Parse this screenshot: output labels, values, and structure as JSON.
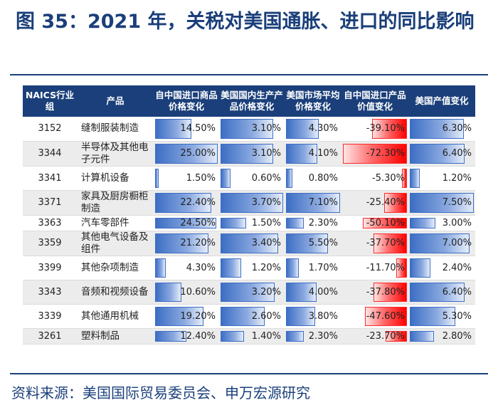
{
  "title": "图 35：2021 年，关税对美国通胀、进口的同比影响",
  "headers": [
    "NAICS行业组",
    "产品",
    "自中国进口商品价格变化",
    "美国国内生产产品价格变化",
    "美国市场平均价格变化",
    "自中国进口产品价值变化",
    "美国产值变化"
  ],
  "colors": {
    "header_bg": "#1a3f7a",
    "positive_bar": "#3d6ec4",
    "negative_bar": "#ff0000"
  },
  "rows": [
    {
      "code": "3152",
      "product": "缝制服装制造",
      "import_price": "14.50%",
      "domestic_price": "3.10%",
      "market_price": "4.30%",
      "import_value": "-39.10%",
      "output": "6.30%"
    },
    {
      "code": "3344",
      "product": "半导体及其他电子元件",
      "import_price": "25.00%",
      "domestic_price": "3.10%",
      "market_price": "4.10%",
      "import_value": "-72.30%",
      "output": "6.40%"
    },
    {
      "code": "3341",
      "product": "计算机设备",
      "import_price": "1.50%",
      "domestic_price": "0.60%",
      "market_price": "0.80%",
      "import_value": "-5.30%",
      "output": "1.20%"
    },
    {
      "code": "3371",
      "product": "家具及厨房橱柜制造",
      "import_price": "22.40%",
      "domestic_price": "3.70%",
      "market_price": "7.10%",
      "import_value": "-25.40%",
      "output": "7.50%"
    },
    {
      "code": "3363",
      "product": "汽车零部件",
      "import_price": "24.50%",
      "domestic_price": "1.50%",
      "market_price": "2.30%",
      "import_value": "-50.10%",
      "output": "3.00%"
    },
    {
      "code": "3359",
      "product": "其他电气设备及组件",
      "import_price": "21.20%",
      "domestic_price": "3.40%",
      "market_price": "5.50%",
      "import_value": "-37.70%",
      "output": "7.00%"
    },
    {
      "code": "3399",
      "product": "其他杂项制造",
      "import_price": "4.30%",
      "domestic_price": "1.20%",
      "market_price": "1.70%",
      "import_value": "-11.70%",
      "output": "2.40%"
    },
    {
      "code": "3343",
      "product": "音频和视频设备",
      "import_price": "10.60%",
      "domestic_price": "3.20%",
      "market_price": "4.00%",
      "import_value": "-37.80%",
      "output": "6.40%"
    },
    {
      "code": "3339",
      "product": "其他通用机械",
      "import_price": "19.20%",
      "domestic_price": "2.60%",
      "market_price": "3.80%",
      "import_value": "-47.60%",
      "output": "5.30%"
    },
    {
      "code": "3261",
      "product": "塑料制品",
      "import_price": "12.40%",
      "domestic_price": "1.40%",
      "market_price": "2.30%",
      "import_value": "-23.70%",
      "output": "2.80%"
    }
  ],
  "source": "资料来源：美国国际贸易委员会、申万宏源研究"
}
